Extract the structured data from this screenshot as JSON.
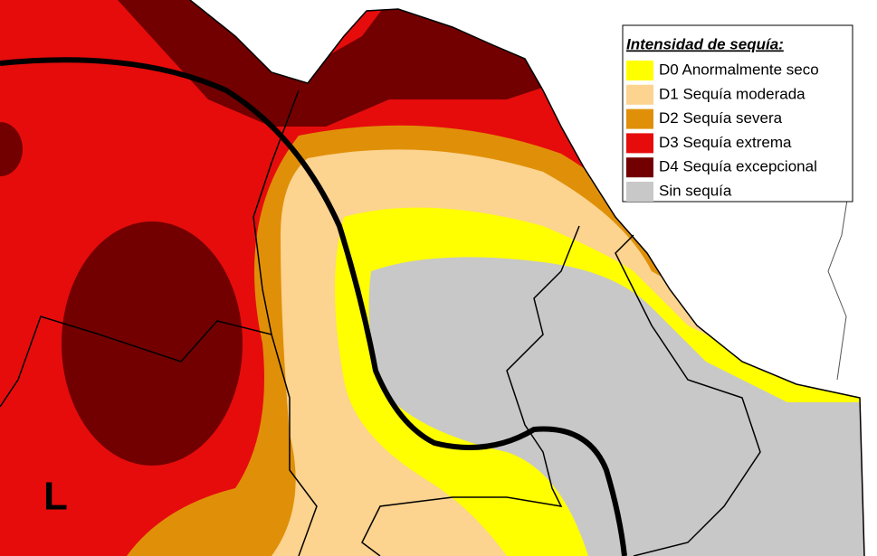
{
  "legend": {
    "title": "Intensidad de sequía:",
    "items": [
      {
        "label": "D0 Anormalmente seco",
        "color": "#ffff00"
      },
      {
        "label": "D1 Sequía moderada",
        "color": "#fcd38f"
      },
      {
        "label": "D2 Sequía severa",
        "color": "#e09008"
      },
      {
        "label": "D3 Sequía extrema",
        "color": "#e60c0c"
      },
      {
        "label": "D4 Sequía excepcional",
        "color": "#730000"
      },
      {
        "label": "Sin sequía",
        "color": "#c8c8c8"
      }
    ]
  },
  "map_label": "L"
}
